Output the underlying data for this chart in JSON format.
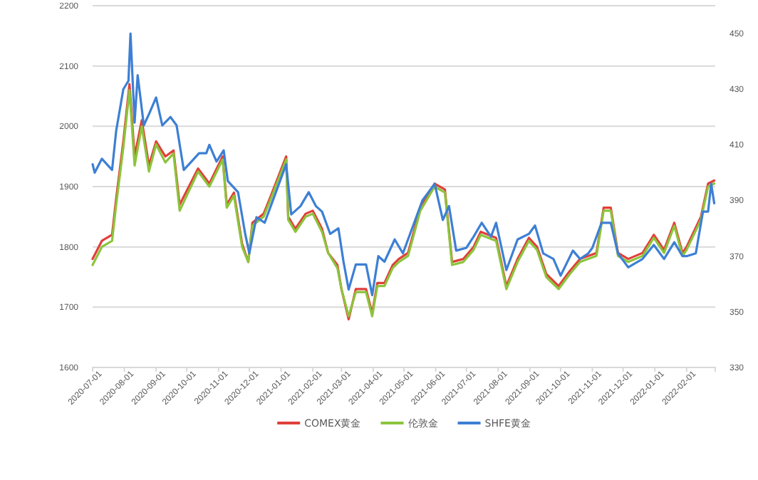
{
  "chart_data": {
    "type": "line",
    "legend": "bottom",
    "grid": "y",
    "marker": "none",
    "line_style": "solid",
    "xlim": [
      "2020-07-01",
      "2022-03-01"
    ],
    "xticks": [
      "2020-07-01",
      "2020-08-01",
      "2020-09-01",
      "2020-10-01",
      "2020-11-01",
      "2020-12-01",
      "2021-01-01",
      "2021-02-01",
      "2021-03-01",
      "2021-04-01",
      "2021-05-01",
      "2021-06-01",
      "2021-07-01",
      "2021-08-01",
      "2021-09-01",
      "2021-10-01",
      "2021-11-01",
      "2021-12-01",
      "2022-01-01",
      "2022-02-01"
    ],
    "ylim": [
      1600,
      2200
    ],
    "yticks": [
      1600,
      1700,
      1800,
      1900,
      2000,
      2100,
      2200
    ],
    "y2lim": [
      330,
      460
    ],
    "y2ticks": [
      330,
      350,
      370,
      390,
      410,
      430,
      450
    ],
    "series": [
      {
        "name": "COMEX黄金",
        "color": "#e0403a",
        "x": [
          "2020-07-01",
          "2020-07-10",
          "2020-07-20",
          "2020-07-24",
          "2020-07-31",
          "2020-08-06",
          "2020-08-11",
          "2020-08-18",
          "2020-08-25",
          "2020-09-01",
          "2020-09-10",
          "2020-09-18",
          "2020-09-24",
          "2020-10-12",
          "2020-10-23",
          "2020-11-05",
          "2020-11-09",
          "2020-11-16",
          "2020-11-24",
          "2020-11-30",
          "2020-12-04",
          "2020-12-15",
          "2020-12-21",
          "2021-01-06",
          "2021-01-08",
          "2021-01-15",
          "2021-01-25",
          "2021-02-01",
          "2021-02-10",
          "2021-02-16",
          "2021-02-25",
          "2021-03-01",
          "2021-03-08",
          "2021-03-15",
          "2021-03-25",
          "2021-03-31",
          "2021-04-05",
          "2021-04-12",
          "2021-04-20",
          "2021-04-26",
          "2021-05-05",
          "2021-05-17",
          "2021-05-31",
          "2021-06-10",
          "2021-06-17",
          "2021-06-28",
          "2021-07-08",
          "2021-07-15",
          "2021-07-30",
          "2021-08-09",
          "2021-08-20",
          "2021-08-31",
          "2021-09-08",
          "2021-09-17",
          "2021-09-29",
          "2021-10-10",
          "2021-10-20",
          "2021-11-05",
          "2021-11-12",
          "2021-11-19",
          "2021-11-26",
          "2021-12-06",
          "2021-12-20",
          "2021-12-31",
          "2022-01-10",
          "2022-01-20",
          "2022-01-28",
          "2022-02-01",
          "2022-02-15",
          "2022-02-22",
          "2022-02-28"
        ],
        "values": [
          1780,
          1810,
          1820,
          1880,
          1975,
          2070,
          1950,
          2010,
          1935,
          1975,
          1950,
          1960,
          1870,
          1930,
          1905,
          1950,
          1870,
          1890,
          1805,
          1775,
          1840,
          1855,
          1880,
          1950,
          1850,
          1830,
          1855,
          1860,
          1830,
          1790,
          1770,
          1730,
          1680,
          1730,
          1730,
          1690,
          1740,
          1740,
          1770,
          1780,
          1790,
          1865,
          1905,
          1895,
          1775,
          1780,
          1800,
          1825,
          1815,
          1735,
          1780,
          1815,
          1800,
          1755,
          1735,
          1760,
          1780,
          1790,
          1865,
          1865,
          1790,
          1780,
          1790,
          1820,
          1795,
          1840,
          1790,
          1800,
          1850,
          1905,
          1910
        ]
      },
      {
        "name": "伦敦金",
        "color": "#8cc43c",
        "x": [
          "2020-07-01",
          "2020-07-10",
          "2020-07-20",
          "2020-07-24",
          "2020-07-31",
          "2020-08-06",
          "2020-08-11",
          "2020-08-18",
          "2020-08-25",
          "2020-09-01",
          "2020-09-10",
          "2020-09-18",
          "2020-09-24",
          "2020-10-12",
          "2020-10-23",
          "2020-11-05",
          "2020-11-09",
          "2020-11-16",
          "2020-11-24",
          "2020-11-30",
          "2020-12-04",
          "2020-12-15",
          "2020-12-21",
          "2021-01-06",
          "2021-01-08",
          "2021-01-15",
          "2021-01-25",
          "2021-02-01",
          "2021-02-10",
          "2021-02-16",
          "2021-02-25",
          "2021-03-01",
          "2021-03-08",
          "2021-03-15",
          "2021-03-25",
          "2021-03-31",
          "2021-04-05",
          "2021-04-12",
          "2021-04-20",
          "2021-04-26",
          "2021-05-05",
          "2021-05-17",
          "2021-05-31",
          "2021-06-10",
          "2021-06-17",
          "2021-06-28",
          "2021-07-08",
          "2021-07-15",
          "2021-07-30",
          "2021-08-09",
          "2021-08-20",
          "2021-08-31",
          "2021-09-08",
          "2021-09-17",
          "2021-09-29",
          "2021-10-10",
          "2021-10-20",
          "2021-11-05",
          "2021-11-12",
          "2021-11-19",
          "2021-11-26",
          "2021-12-06",
          "2021-12-20",
          "2021-12-31",
          "2022-01-10",
          "2022-01-20",
          "2022-01-28",
          "2022-02-01",
          "2022-02-15",
          "2022-02-22",
          "2022-02-28"
        ],
        "values": [
          1770,
          1800,
          1810,
          1870,
          1965,
          2060,
          1935,
          2000,
          1925,
          1970,
          1940,
          1955,
          1860,
          1925,
          1900,
          1945,
          1865,
          1885,
          1800,
          1775,
          1835,
          1850,
          1875,
          1945,
          1845,
          1825,
          1850,
          1855,
          1825,
          1790,
          1765,
          1730,
          1685,
          1725,
          1725,
          1685,
          1735,
          1735,
          1765,
          1775,
          1785,
          1860,
          1900,
          1890,
          1770,
          1775,
          1795,
          1820,
          1810,
          1730,
          1775,
          1810,
          1795,
          1750,
          1730,
          1755,
          1775,
          1785,
          1860,
          1860,
          1785,
          1775,
          1785,
          1815,
          1790,
          1835,
          1785,
          1795,
          1845,
          1900,
          1905
        ]
      },
      {
        "name": "SHFE黄金",
        "color": "#3d7fd4",
        "axis": "y2",
        "x": [
          "2020-07-01",
          "2020-07-03",
          "2020-07-10",
          "2020-07-20",
          "2020-07-24",
          "2020-07-31",
          "2020-08-05",
          "2020-08-07",
          "2020-08-11",
          "2020-08-14",
          "2020-08-20",
          "2020-08-25",
          "2020-09-01",
          "2020-09-07",
          "2020-09-15",
          "2020-09-21",
          "2020-09-28",
          "2020-10-13",
          "2020-10-20",
          "2020-10-23",
          "2020-10-30",
          "2020-11-06",
          "2020-11-10",
          "2020-11-20",
          "2020-11-27",
          "2020-12-01",
          "2020-12-08",
          "2020-12-16",
          "2020-12-28",
          "2021-01-06",
          "2021-01-11",
          "2021-01-20",
          "2021-01-28",
          "2021-02-04",
          "2021-02-10",
          "2021-02-18",
          "2021-02-26",
          "2021-03-03",
          "2021-03-08",
          "2021-03-15",
          "2021-03-25",
          "2021-03-31",
          "2021-04-06",
          "2021-04-12",
          "2021-04-22",
          "2021-04-30",
          "2021-05-10",
          "2021-05-19",
          "2021-05-31",
          "2021-06-08",
          "2021-06-14",
          "2021-06-21",
          "2021-07-01",
          "2021-07-08",
          "2021-07-16",
          "2021-07-25",
          "2021-07-30",
          "2021-08-09",
          "2021-08-20",
          "2021-08-31",
          "2021-09-06",
          "2021-09-14",
          "2021-09-24",
          "2021-10-01",
          "2021-10-13",
          "2021-10-20",
          "2021-10-28",
          "2021-11-01",
          "2021-11-10",
          "2021-11-19",
          "2021-11-26",
          "2021-12-06",
          "2021-12-20",
          "2021-12-31",
          "2022-01-10",
          "2022-01-20",
          "2022-01-28",
          "2022-02-01",
          "2022-02-10",
          "2022-02-17",
          "2022-02-22",
          "2022-02-25",
          "2022-02-28"
        ],
        "values": [
          403,
          400,
          405,
          401,
          415,
          430,
          433,
          450,
          418,
          435,
          417,
          421,
          427,
          417,
          420,
          417,
          401,
          407,
          407,
          410,
          404,
          408,
          397,
          393,
          378,
          371,
          384,
          382,
          394,
          403,
          385,
          388,
          393,
          388,
          386,
          378,
          380,
          368,
          358,
          367,
          367,
          356,
          370,
          368,
          376,
          371,
          381,
          390,
          396,
          383,
          388,
          372,
          373,
          377,
          382,
          377,
          382,
          365,
          376,
          378,
          381,
          371,
          369,
          363,
          372,
          369,
          371,
          373,
          382,
          382,
          371,
          366,
          369,
          374,
          369,
          375,
          370,
          370,
          371,
          386,
          386,
          396,
          389
        ]
      }
    ]
  }
}
